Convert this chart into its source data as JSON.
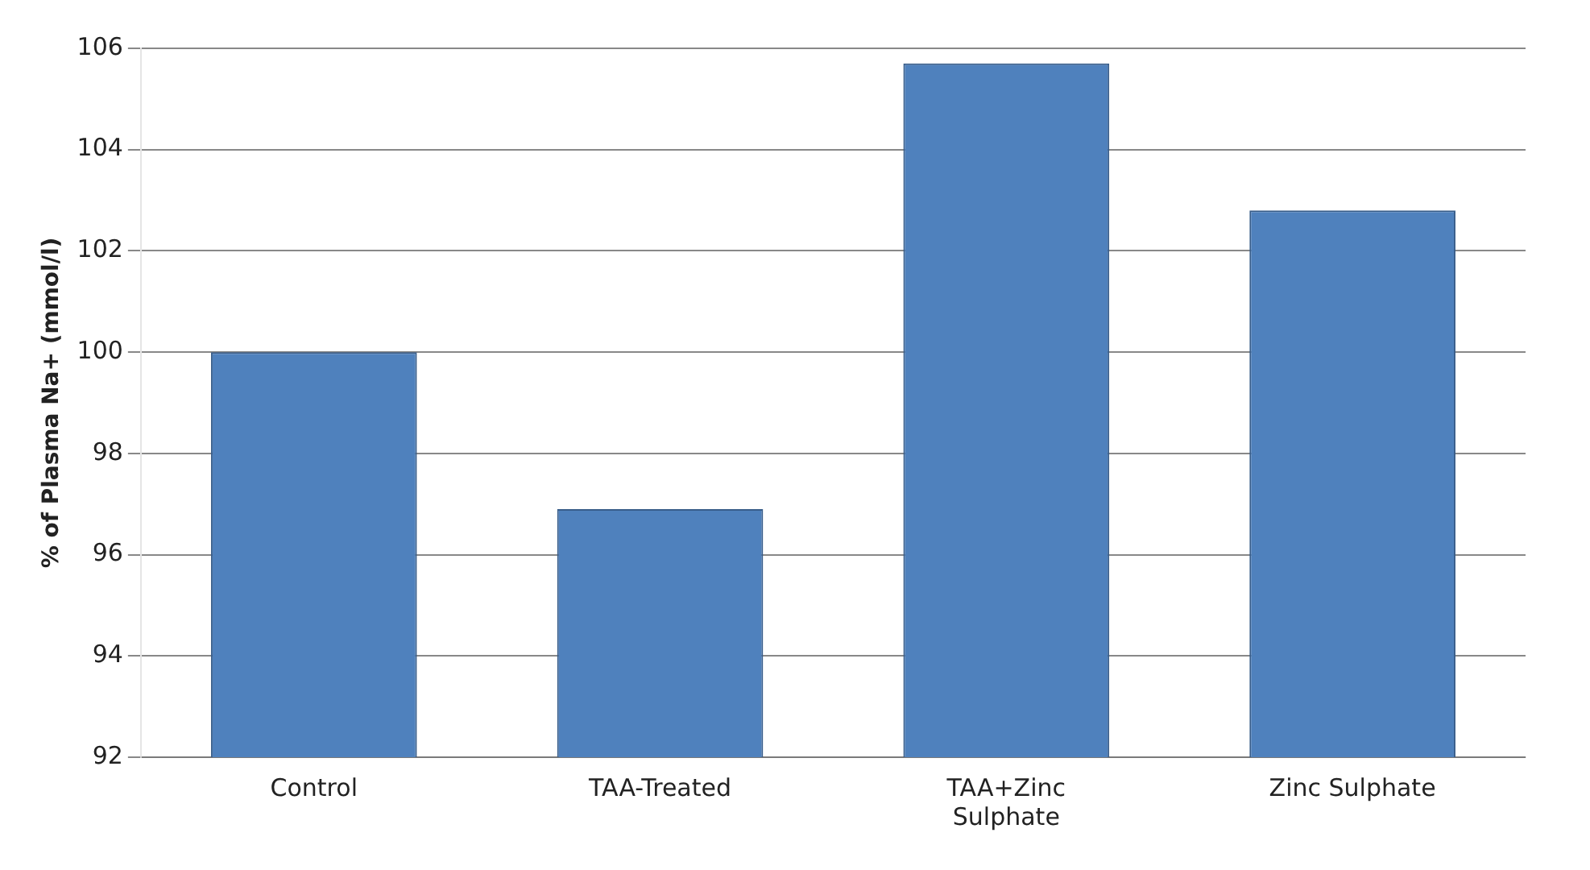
{
  "chart_data": {
    "type": "bar",
    "ylabel": "% of Plasma Na+ (mmol/l)",
    "categories": [
      "Control",
      "TAA-Treated",
      "TAA+Zinc Sulphate",
      "Zinc Sulphate"
    ],
    "values": [
      100,
      96.9,
      105.7,
      102.8
    ],
    "color": "#4f81bd",
    "ylim": [
      92,
      106
    ],
    "yticks": [
      92,
      94,
      96,
      98,
      100,
      102,
      104,
      106
    ],
    "grid": "y",
    "legend": false
  }
}
